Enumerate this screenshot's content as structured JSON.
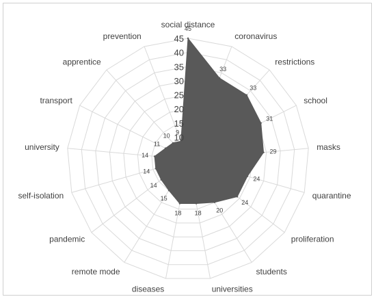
{
  "chart_data": {
    "type": "radar",
    "categories": [
      "social distance",
      "coronavirus",
      "restrictions",
      "school",
      "masks",
      "quarantine",
      "proliferation",
      "students",
      "universities",
      "diseases",
      "remote mode",
      "pandemic",
      "self-isolation",
      "university",
      "transport",
      "apprentice",
      "prevention"
    ],
    "series": [
      {
        "values": [
          45,
          33,
          33,
          31,
          29,
          24,
          24,
          20,
          18,
          18,
          15,
          14,
          14,
          14,
          11,
          10,
          9
        ]
      }
    ],
    "axis": {
      "min": 5,
      "max": 45,
      "ticks": [
        10,
        15,
        20,
        25,
        30,
        35,
        40,
        45
      ]
    },
    "grid": true,
    "legend": "none",
    "colors": {
      "fill": "#595959",
      "grid": "#d9d9d9",
      "text": "#404040"
    }
  }
}
